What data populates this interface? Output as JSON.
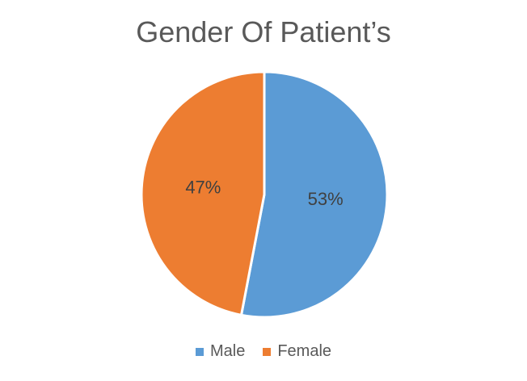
{
  "chart_data": {
    "type": "pie",
    "title": "Gender Of Patient’s",
    "categories": [
      "Male",
      "Female"
    ],
    "values": [
      53,
      47
    ],
    "data_labels": [
      "53%",
      "47%"
    ],
    "colors": [
      "#5B9BD5",
      "#ED7D31"
    ],
    "legend": "bottom"
  }
}
